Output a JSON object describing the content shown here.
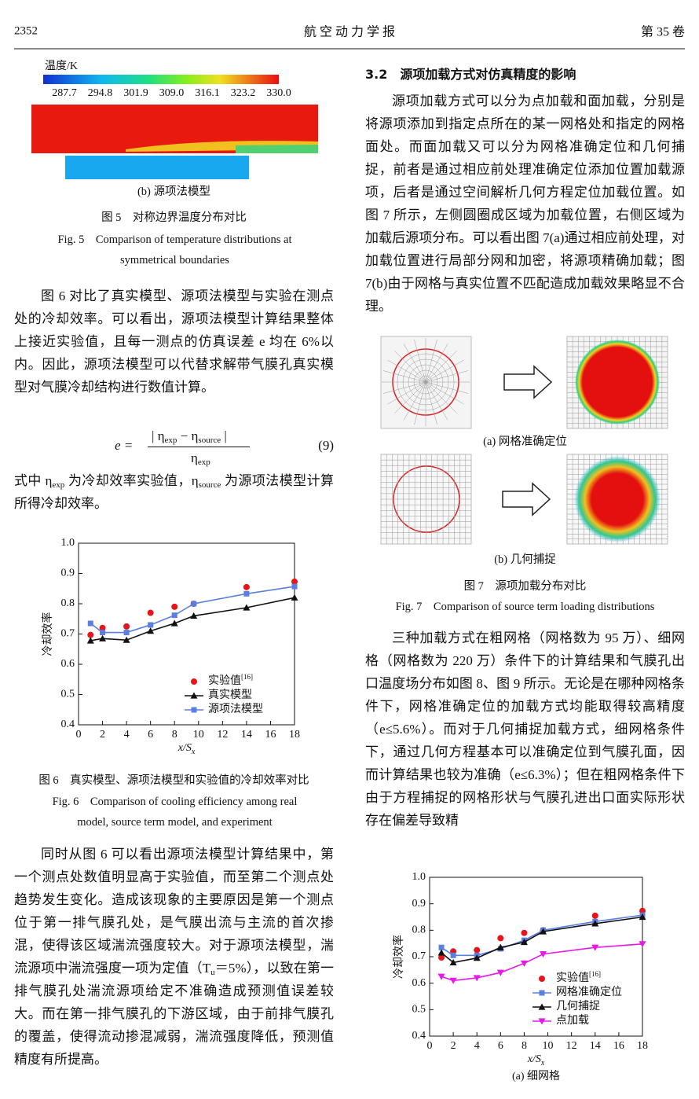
{
  "header": {
    "page": "2352",
    "journal": "航 空 动 力 学 报",
    "volume": "第 35 卷"
  },
  "figure5": {
    "colorbar_label": "温度/K",
    "colorbar_ticks": [
      "287.7",
      "294.8",
      "301.9",
      "309.0",
      "316.1",
      "323.2",
      "330.0"
    ],
    "subcaption": "(b) 源项法模型",
    "caption_cn": "图 5　对称边界温度分布对比",
    "caption_en": "Fig. 5　Comparison of temperature distributions at symmetrical boundaries"
  },
  "left": {
    "para1": "图 6 对比了真实模型、源项法模型与实验在测点处的冷却效率。可以看出，源项法模型计算结果整体上接近实验值，且每一测点的仿真误差 e 均在 6%以内。因此，源项法模型可以代替求解带气膜孔真实模型对气膜冷却结构进行数值计算。",
    "equation": {
      "lhs": "e =",
      "numerator": [
        "| η",
        "exp",
        " − η",
        "source",
        " |"
      ],
      "denominator": [
        "η",
        "exp"
      ],
      "number": "(9)"
    },
    "para2": [
      "式中 η",
      "exp",
      " 为冷却效率实验值，η",
      "source",
      " 为源项法模型计算所得冷却效率。"
    ],
    "para3": [
      "同时从图 6 可以看出源项法模型计算结果中，第一个测点处数值明显高于实验值，而至第二个测点处趋势发生变化。造成该现象的主要原因是第一个测点位于第一排气膜孔处，是气膜出流与主流的首次掺混，使得该区域湍流强度较大。对于源项法模型，湍流源项中湍流强度一项为定值（T",
      "u",
      "＝5%），以致在第一排气膜孔处湍流源项给定不准确造成预测值误差较大。而在第一排气膜孔的下游区域，由于前排气膜孔的覆盖，使得流动掺混减弱，湍流强度降低，预测值精度有所提高。"
    ]
  },
  "figure6": {
    "caption_cn": "图 6　真实模型、源项法模型和实验值的冷却效率对比",
    "caption_en": "Fig. 6　Comparison of cooling efficiency among real model, source term model, and experiment"
  },
  "right": {
    "heading": "3.2　源项加载方式对仿真精度的影响",
    "para1": "源项加载方式可以分为点加载和面加载，分别是将源项添加到指定点所在的某一网格处和指定的网格面处。而面加载又可以分为网格准确定位和几何捕捉，前者是通过相应前处理准确定位添加位置加载源项，后者是通过空间解析几何方程定位加载位置。如图 7 所示，左侧圆圈成区域为加载位置，右侧区域为加载后源项分布。可以看出图 7(a)通过相应前处理，对加载位置进行局部分网和加密，将源项精确加载；图 7(b)由于网格与真实位置不匹配造成加载效果略显不合理。",
    "para2": "三种加载方式在粗网格（网格数为 95 万）、细网格（网格数为 220 万）条件下的计算结果和气膜孔出口温度场分布如图 8、图 9 所示。无论是在哪种网格条件下，网格准确定位的加载方式均能取得较高精度（e≤5.6%）。而对于几何捕捉加载方式，细网格条件下，通过几何方程基本可以准确定位到气膜孔面，因而计算结果也较为准确（e≤6.3%）；但在粗网格条件下由于方程捕捉的网格形状与气膜孔进出口面实际形状存在偏差导致精"
  },
  "figure7": {
    "subcaption_a": "(a) 网格准确定位",
    "subcaption_b": "(b) 几何捕捉",
    "caption_cn": "图 7　源项加载分布对比",
    "caption_en": "Fig. 7　Comparison of source term loading distributions"
  },
  "chart_data": [
    {
      "type": "line",
      "ylabel": "冷却效率",
      "xlabel": "x/S",
      "xlabel_sub": "x",
      "x": [
        1,
        2,
        4,
        6,
        8,
        9.6,
        14,
        18
      ],
      "xlim": [
        0,
        18
      ],
      "xticks": [
        0,
        2,
        4,
        6,
        8,
        10,
        12,
        14,
        16,
        18
      ],
      "ylim": [
        0.4,
        1.0
      ],
      "yticks": [
        0.4,
        0.5,
        0.6,
        0.7,
        0.8,
        0.9,
        {
          "value": 1.0,
          "label": "1.0"
        }
      ],
      "legend": "lower right",
      "series": [
        {
          "name": "实验值",
          "name_sup": "[16]",
          "color": "#e8141c",
          "marker": "circle",
          "line": false,
          "values": [
            0.697,
            0.72,
            0.725,
            0.77,
            0.79,
            0.8,
            0.855,
            0.873
          ]
        },
        {
          "name": "真实模型",
          "color": "#111111",
          "marker": "triangle",
          "line": true,
          "values": [
            0.678,
            0.685,
            0.68,
            0.71,
            0.735,
            0.76,
            0.787,
            0.82
          ]
        },
        {
          "name": "源项法模型",
          "color": "#5b7fe0",
          "marker": "square",
          "line": true,
          "values": [
            0.735,
            0.705,
            0.705,
            0.73,
            0.762,
            0.8,
            0.833,
            0.857
          ]
        }
      ]
    },
    {
      "type": "line",
      "ylabel": "冷却效率",
      "xlabel": "x/S",
      "xlabel_sub": "x",
      "caption": "(a) 细网格",
      "x": [
        1,
        2,
        4,
        6,
        8,
        9.6,
        14,
        18
      ],
      "xlim": [
        0,
        18
      ],
      "xticks": [
        0,
        2,
        4,
        6,
        8,
        10,
        12,
        14,
        16,
        18
      ],
      "ylim": [
        0.4,
        1.0
      ],
      "yticks": [
        0.4,
        0.5,
        0.6,
        0.7,
        0.8,
        0.9,
        {
          "value": 1.0,
          "label": "1.0"
        }
      ],
      "legend": "lower right",
      "series": [
        {
          "name": "实验值",
          "name_sup": "[16]",
          "color": "#e8141c",
          "marker": "circle",
          "line": false,
          "values": [
            0.697,
            0.72,
            0.725,
            0.77,
            0.79,
            0.8,
            0.855,
            0.873
          ]
        },
        {
          "name": "网格准确定位",
          "color": "#5b7fe0",
          "marker": "square",
          "line": true,
          "values": [
            0.735,
            0.705,
            0.705,
            0.73,
            0.762,
            0.8,
            0.833,
            0.857
          ]
        },
        {
          "name": "几何捕捉",
          "color": "#111111",
          "marker": "triangle",
          "line": true,
          "values": [
            0.715,
            0.678,
            0.695,
            0.735,
            0.755,
            0.795,
            0.825,
            0.85
          ]
        },
        {
          "name": "点加载",
          "color": "#e619e6",
          "marker": "triangle-down",
          "line": true,
          "values": [
            0.625,
            0.61,
            0.62,
            0.64,
            0.675,
            0.71,
            0.735,
            0.748
          ]
        }
      ]
    }
  ]
}
